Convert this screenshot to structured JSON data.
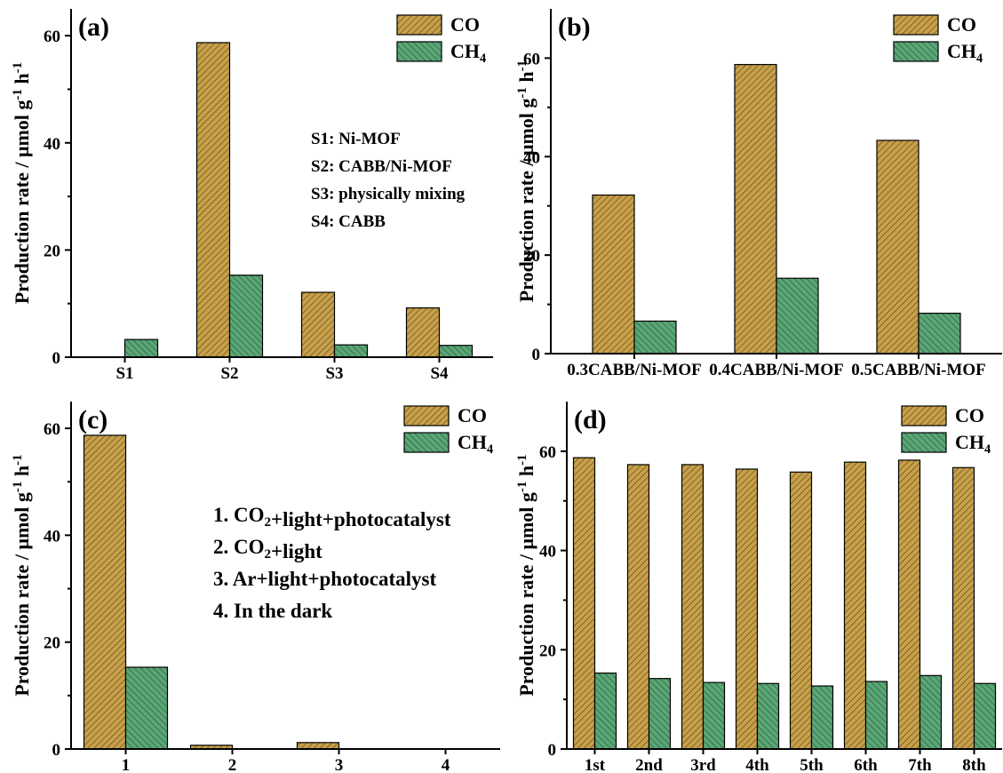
{
  "colors": {
    "co": "#c8a04a",
    "ch4": "#5aa676"
  },
  "chart_data": [
    {
      "type": "bar",
      "panel_label": "(a)",
      "categories": [
        "S1",
        "S2",
        "S3",
        "S4"
      ],
      "series": [
        {
          "name": "CO",
          "values": [
            0,
            58.7,
            12.1,
            9.2
          ]
        },
        {
          "name": "CH4",
          "values": [
            3.3,
            15.3,
            2.3,
            2.2
          ]
        }
      ],
      "ylabel": "Production rate / μmol g-1 h-1",
      "ylim": [
        0,
        65
      ],
      "yticks": [
        0,
        20,
        40,
        60
      ],
      "legend": "top-right",
      "notes": [
        "S1: Ni-MOF",
        "S2: CABB/Ni-MOF",
        "S3: physically mixing",
        "S4: CABB"
      ]
    },
    {
      "type": "bar",
      "panel_label": "(b)",
      "categories": [
        "0.3CABB/Ni-MOF",
        "0.4CABB/Ni-MOF",
        "0.5CABB/Ni-MOF"
      ],
      "series": [
        {
          "name": "CO",
          "values": [
            32.2,
            58.7,
            43.3
          ]
        },
        {
          "name": "CH4",
          "values": [
            6.6,
            15.3,
            8.2
          ]
        }
      ],
      "ylabel": "Production rate / μmol g-1 h-1",
      "ylim": [
        0,
        70
      ],
      "yticks": [
        0,
        20,
        40,
        60
      ],
      "legend": "top-right",
      "notes": []
    },
    {
      "type": "bar",
      "panel_label": "(c)",
      "categories": [
        "1",
        "2",
        "3",
        "4"
      ],
      "series": [
        {
          "name": "CO",
          "values": [
            58.7,
            0.7,
            1.2,
            0
          ]
        },
        {
          "name": "CH4",
          "values": [
            15.3,
            0,
            0,
            0
          ]
        }
      ],
      "ylabel": "Production rate / μmol g-1 h-1",
      "ylim": [
        0,
        65
      ],
      "yticks": [
        0,
        20,
        40,
        60
      ],
      "legend": "top-right",
      "notes": [
        "1. CO2+light+photocatalyst",
        "2. CO2+light",
        "3. Ar+light+photocatalyst",
        "4. In the dark"
      ]
    },
    {
      "type": "bar",
      "panel_label": "(d)",
      "categories": [
        "1st",
        "2nd",
        "3rd",
        "4th",
        "5th",
        "6th",
        "7th",
        "8th"
      ],
      "series": [
        {
          "name": "CO",
          "values": [
            58.7,
            57.3,
            57.3,
            56.4,
            55.8,
            57.8,
            58.2,
            56.7
          ]
        },
        {
          "name": "CH4",
          "values": [
            15.3,
            14.2,
            13.4,
            13.2,
            12.7,
            13.6,
            14.8,
            13.2
          ]
        }
      ],
      "ylabel": "Production rate / μmol g-1 h-1",
      "ylim": [
        0,
        70
      ],
      "yticks": [
        0,
        20,
        40,
        60
      ],
      "legend": "top-right",
      "notes": []
    }
  ]
}
